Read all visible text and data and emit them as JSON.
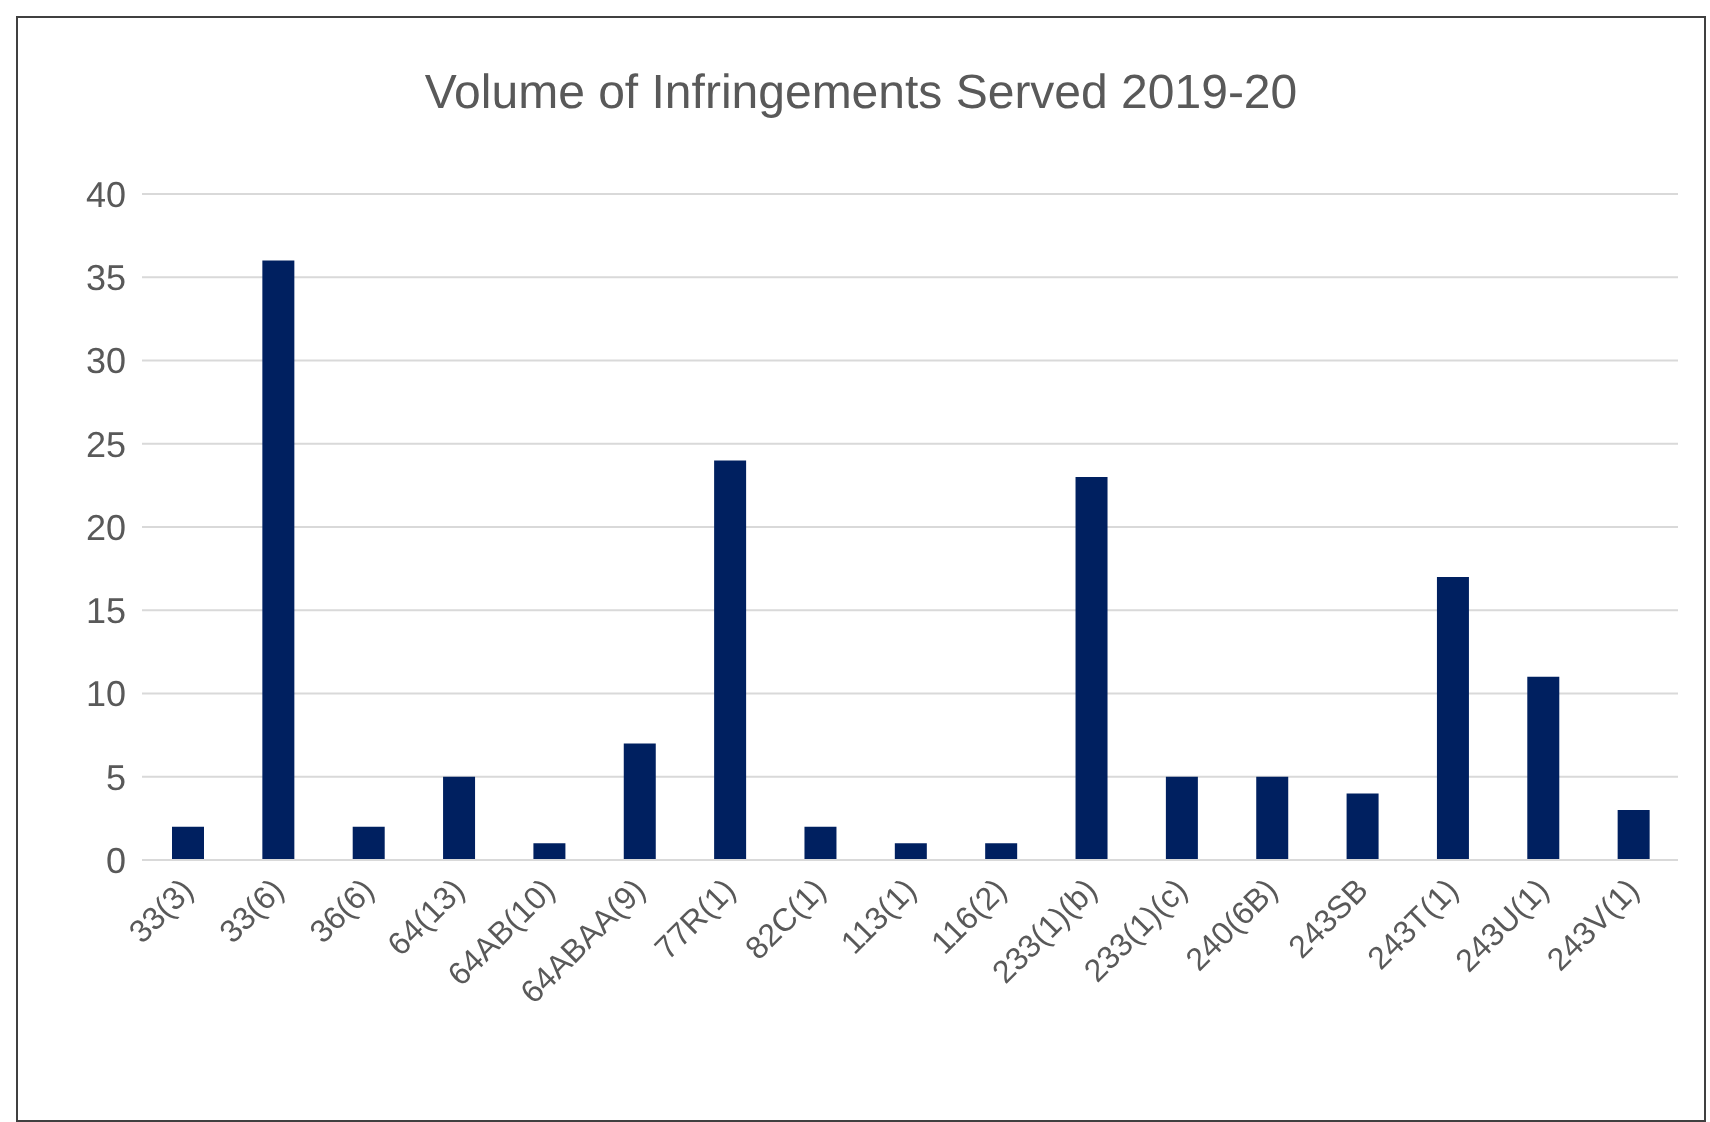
{
  "chart_data": {
    "type": "bar",
    "title": "Volume of Infringements Served 2019-20",
    "categories": [
      "33(3)",
      "33(6)",
      "36(6)",
      "64(13)",
      "64AB(10)",
      "64ABAA(9)",
      "77R(1)",
      "82C(1)",
      "113(1)",
      "116(2)",
      "233(1)(b)",
      "233(1)(c)",
      "240(6B)",
      "243SB",
      "243T(1)",
      "243U(1)",
      "243V(1)"
    ],
    "values": [
      2,
      36,
      2,
      5,
      1,
      7,
      24,
      2,
      1,
      1,
      23,
      5,
      5,
      4,
      17,
      11,
      3
    ],
    "color": "#002060",
    "ylim": [
      0,
      40
    ],
    "yticks": [
      0,
      5,
      10,
      15,
      20,
      25,
      30,
      35,
      40
    ],
    "grid": "y",
    "legend": false
  }
}
